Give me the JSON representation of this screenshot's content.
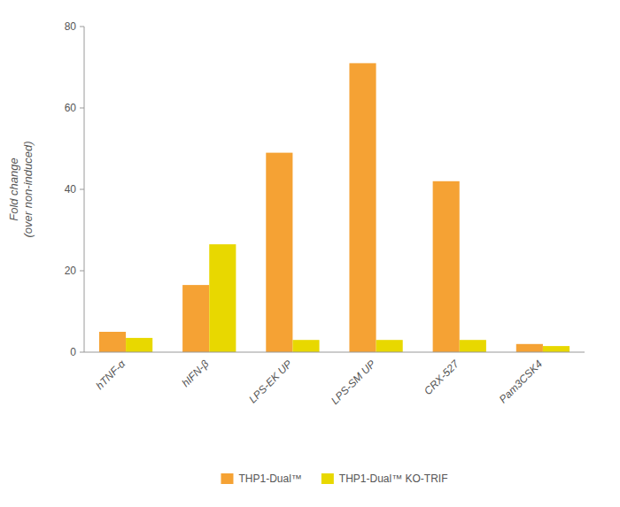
{
  "chart_data": {
    "type": "bar",
    "categories": [
      "hTNF-α",
      "hIFN-β",
      "LPS-EK UP",
      "LPS-SM UP",
      "CRX-527",
      "Pam3CSK4"
    ],
    "series": [
      {
        "name": "THP1-Dual™",
        "color": "#F5A234",
        "values": [
          5.0,
          16.5,
          49.0,
          71.0,
          42.0,
          2.0
        ]
      },
      {
        "name": "THP1-Dual™ KO-TRIF",
        "color": "#E8D800",
        "values": [
          3.5,
          26.5,
          3.0,
          3.0,
          3.0,
          1.5
        ]
      }
    ],
    "ylabel": "Fold change\n(over non-induced)",
    "ylim": [
      0,
      80
    ],
    "yticks": [
      0,
      20,
      40,
      60,
      80
    ],
    "grid": false,
    "legend": "bottom"
  }
}
